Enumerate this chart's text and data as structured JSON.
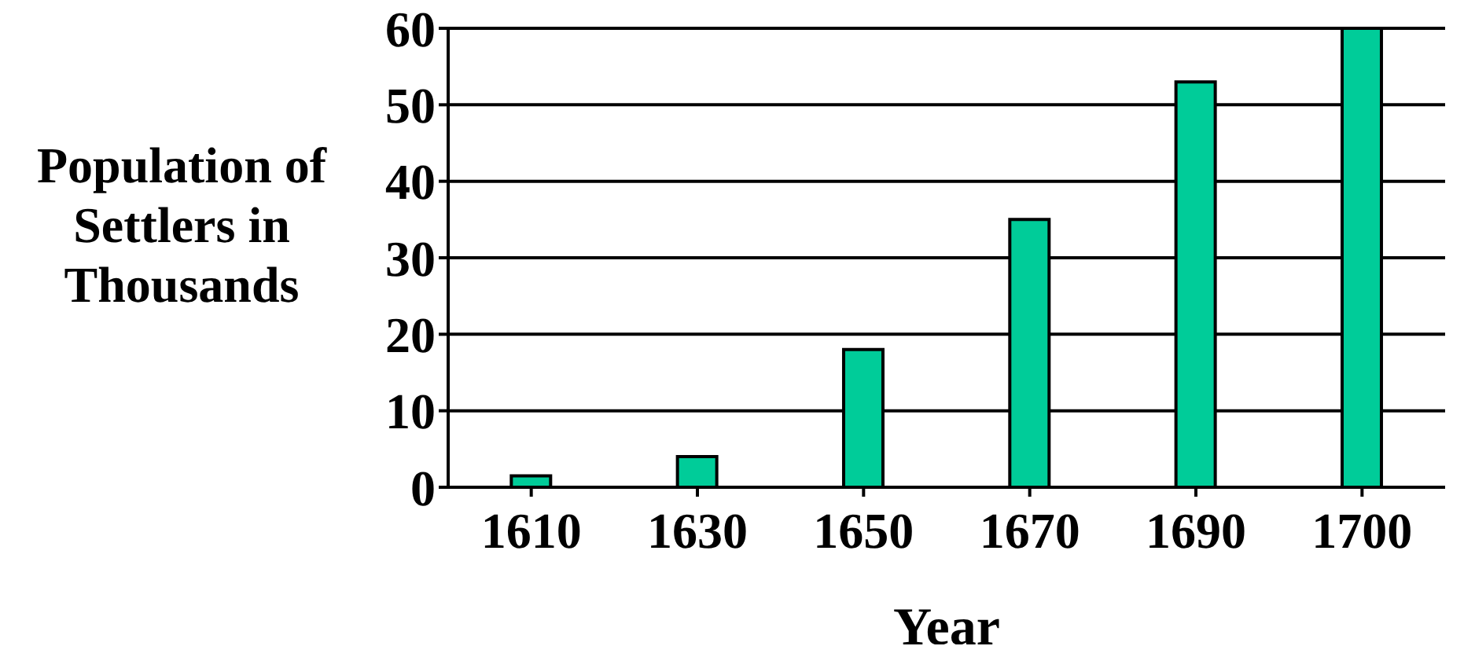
{
  "chart_data": {
    "type": "bar",
    "xlabel": "Year",
    "ylabel": "Population of Settlers in Thousands",
    "categories": [
      "1610",
      "1630",
      "1650",
      "1670",
      "1690",
      "1700"
    ],
    "values": [
      1.5,
      4,
      18,
      35,
      53,
      60
    ],
    "color": "#00cc99",
    "ylim": [
      0,
      60
    ],
    "yticks": [
      0,
      10,
      20,
      30,
      40,
      50,
      60
    ],
    "grid": "y"
  }
}
